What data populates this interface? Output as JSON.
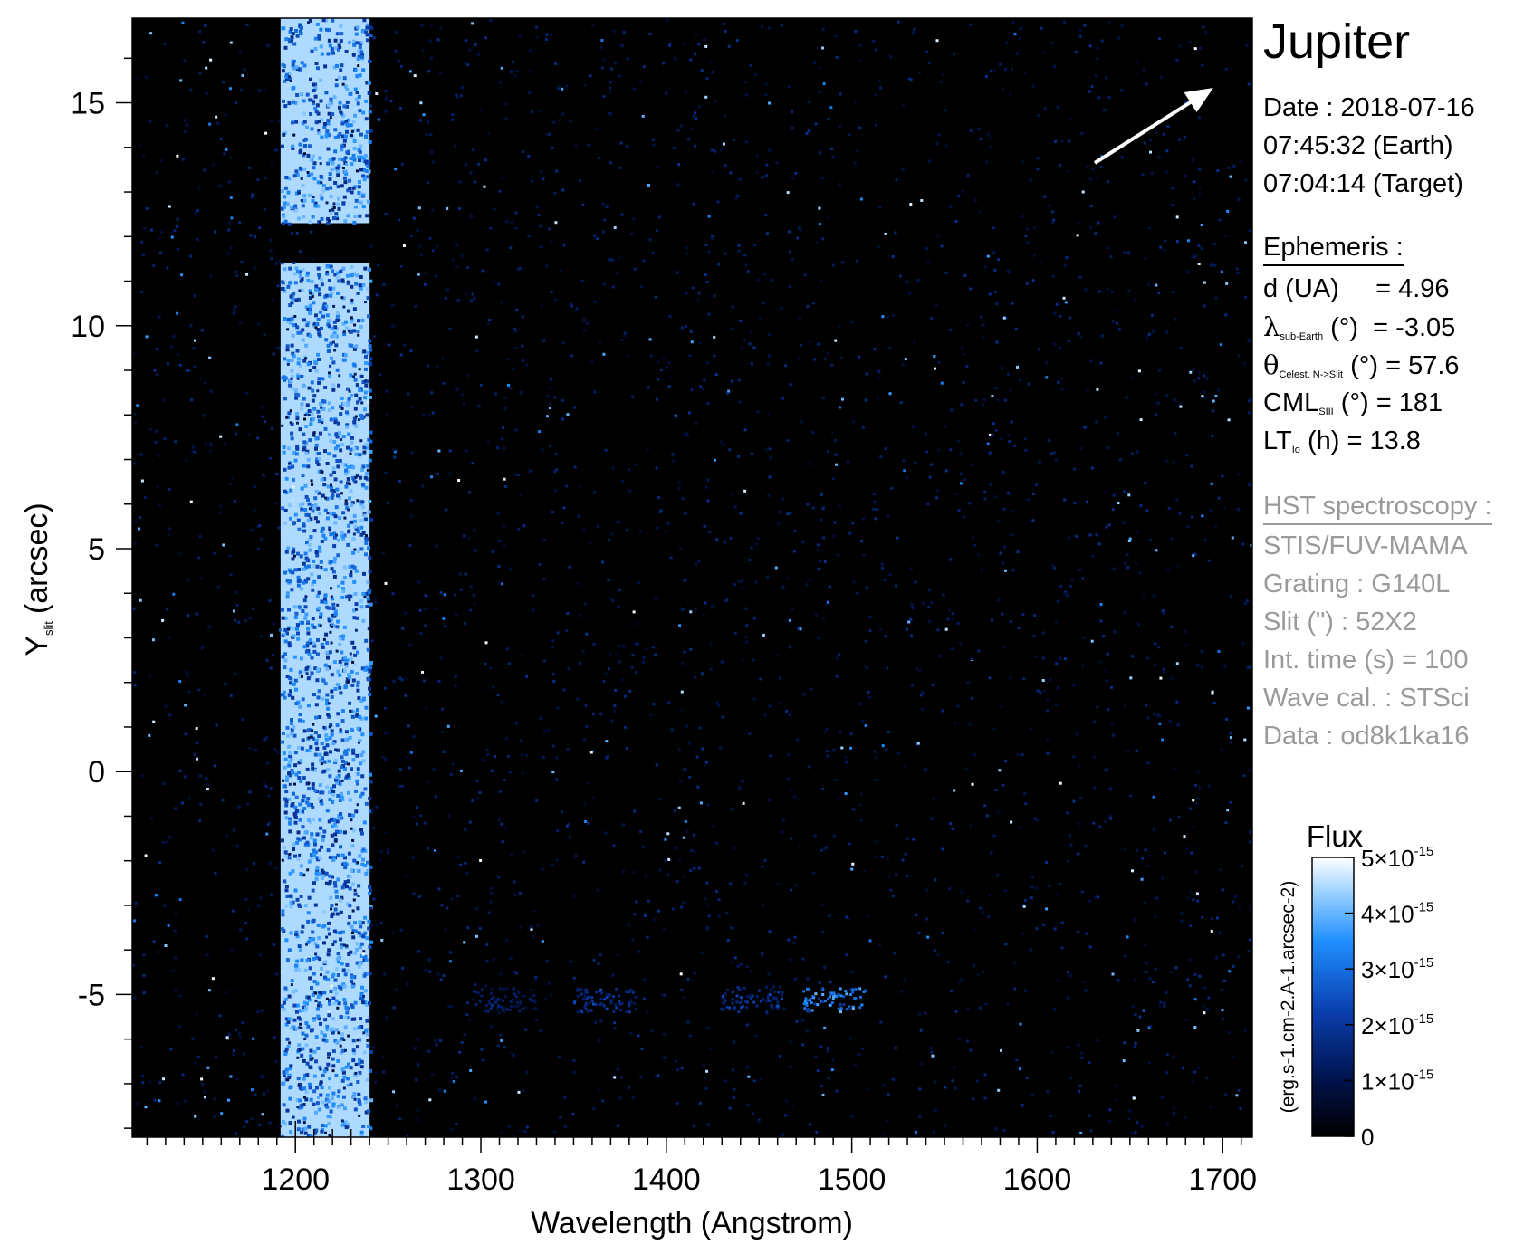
{
  "chart_data": {
    "type": "heatmap",
    "xlabel": "Wavelength (Angstrom)",
    "ylabel": "Y",
    "ylabel_sub": "slit",
    "ylabel_unit": "(arcsec)",
    "xlim": [
      1112,
      1716
    ],
    "ylim": [
      -8.2,
      16.9
    ],
    "x_ticks": [
      1200,
      1300,
      1400,
      1500,
      1600,
      1700
    ],
    "x_tick_labels": [
      "1200",
      "1300",
      "1400",
      "1500",
      "1600",
      "1700"
    ],
    "y_ticks": [
      -5,
      0,
      5,
      10,
      15
    ],
    "y_tick_labels": [
      "-5",
      "0",
      "5",
      "10",
      "15"
    ],
    "background_color": "#000000",
    "features": [
      {
        "kind": "band",
        "x_range": [
          1192,
          1240
        ],
        "y_range": [
          12.3,
          16.9
        ],
        "level": 0.9
      },
      {
        "kind": "band",
        "x_range": [
          1192,
          1240
        ],
        "y_range": [
          -8.2,
          11.4
        ],
        "level": 0.9
      },
      {
        "kind": "blob",
        "x": 1312,
        "y": -5.1,
        "level": 0.3
      },
      {
        "kind": "blob",
        "x": 1366,
        "y": -5.1,
        "level": 0.45
      },
      {
        "kind": "blob",
        "x": 1446,
        "y": -5.05,
        "level": 0.45
      },
      {
        "kind": "blob",
        "x": 1490,
        "y": -5.1,
        "level": 0.75
      }
    ],
    "colorbar": {
      "title": "Flux",
      "unit_label": "(erg.s-1.cm-2.A-1.arcsec-2)",
      "range": [
        0,
        5e-15
      ],
      "ticks": [
        0,
        1e-15,
        2e-15,
        3e-15,
        4e-15,
        5e-15
      ],
      "tick_labels": [
        "0",
        "1×10",
        "2×10",
        "3×10",
        "4×10",
        "5×10"
      ],
      "tick_exponent": "-15",
      "colors": [
        "#000000",
        "#00124a",
        "#0a3fb0",
        "#1f8fff",
        "#9fd3ff",
        "#ffffff"
      ]
    },
    "arrow": {
      "direction_deg": 57.6
    }
  },
  "panel": {
    "title": "Jupiter",
    "date_lines": [
      "Date : 2018-07-16",
      "07:45:32 (Earth)",
      "07:04:14 (Target)"
    ],
    "ephemeris": {
      "heading": "Ephemeris :",
      "items": [
        {
          "symbol": "d (UA)",
          "sub": "",
          "rest": "     = 4.96"
        },
        {
          "symbol": "λ",
          "sub": "sub-Earth",
          "rest": " (°)  = -3.05"
        },
        {
          "symbol": "θ",
          "sub": "Celest. N->Slit",
          "rest": " (°) = 57.6"
        },
        {
          "symbol": "CML",
          "sub": "SIII",
          "rest": " (°) = 181"
        },
        {
          "symbol": "LT",
          "sub": "Io",
          "rest": " (h) = 13.8"
        }
      ]
    },
    "hst": {
      "heading": "HST spectroscopy :",
      "lines": [
        "STIS/FUV-MAMA",
        "Grating : G140L",
        "Slit (\") : 52X2",
        "Int. time (s) = 100",
        "Wave cal. : STSci",
        "Data : od8k1ka16"
      ]
    }
  }
}
